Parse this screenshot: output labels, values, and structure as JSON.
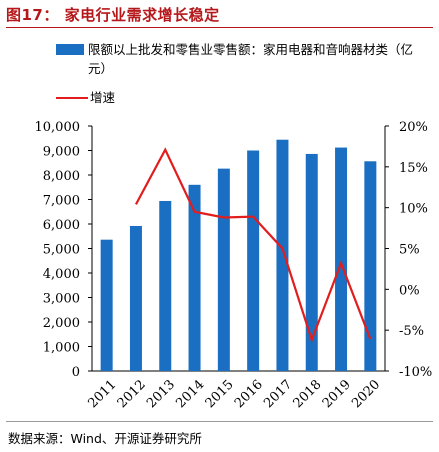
{
  "header": {
    "title": "图17：  家电行业需求增长稳定"
  },
  "chart_data": {
    "type": "bar",
    "categories": [
      "2011",
      "2012",
      "2013",
      "2014",
      "2015",
      "2016",
      "2017",
      "2018",
      "2019",
      "2020"
    ],
    "series": [
      {
        "name": "限额以上批发和零售业零售额：家用电器和音响器材类（亿元）",
        "type": "bar",
        "axis": "left",
        "color": "#1b6fc2",
        "values": [
          5360,
          5920,
          6940,
          7600,
          8260,
          9000,
          9440,
          8860,
          9120,
          8560
        ]
      },
      {
        "name": "增速",
        "type": "line",
        "axis": "right",
        "color": "#e11d1d",
        "values": [
          null,
          10.4,
          17.1,
          9.5,
          8.8,
          8.9,
          5.0,
          -6.2,
          3.2,
          -6.1
        ]
      }
    ],
    "ylim": [
      0,
      10000
    ],
    "y_ticks": [
      "0",
      "1,000",
      "2,000",
      "3,000",
      "4,000",
      "5,000",
      "6,000",
      "7,000",
      "8,000",
      "9,000",
      "10,000"
    ],
    "y2lim": [
      -10,
      20
    ],
    "y2_ticks": [
      "-10%",
      "-5%",
      "0%",
      "5%",
      "10%",
      "15%",
      "20%"
    ],
    "legend_position": "top",
    "grid": false
  },
  "legend": {
    "bar_label": "限额以上批发和零售业零售额：家用电器和音响器材类（亿元）",
    "line_label": "增速"
  },
  "footer": {
    "source": "数据来源：Wind、开源证券研究所"
  }
}
